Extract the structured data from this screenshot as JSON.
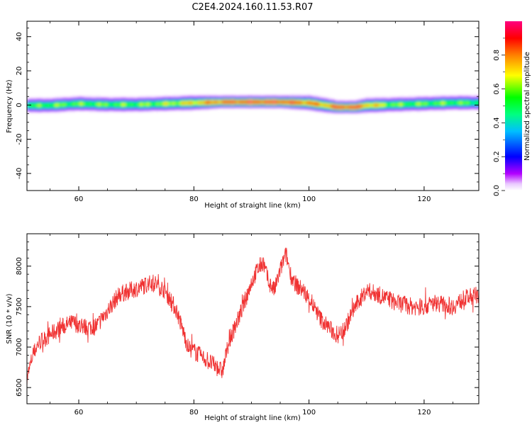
{
  "title": "C2E4.2024.160.11.53.R07",
  "chart_data": [
    {
      "type": "heatmap",
      "xlabel": "Height of straight line (km)",
      "ylabel": "Frequency (Hz)",
      "xlim": [
        51,
        129.5
      ],
      "ylim": [
        -50,
        49
      ],
      "xticks": [
        60,
        80,
        100,
        120
      ],
      "yticks": [
        40,
        20,
        0,
        -20,
        -40
      ],
      "colorbar": {
        "label": "Normalized spectral amplitude",
        "range": [
          0,
          1
        ],
        "ticks": [
          "0.0",
          "0.2",
          "0.4",
          "0.6",
          "0.8"
        ],
        "colors": [
          "#ffffff",
          "#b300ff",
          "#0000ff",
          "#00bfff",
          "#00ff80",
          "#00ff00",
          "#ffff00",
          "#ff8000",
          "#ff0000",
          "#ff0080"
        ]
      },
      "ridge": {
        "x": [
          51,
          55,
          60,
          65,
          70,
          75,
          80,
          85,
          90,
          95,
          100,
          103,
          105,
          108,
          110,
          115,
          120,
          125,
          129.5
        ],
        "center_hz": [
          0,
          0,
          1,
          0.5,
          0.5,
          1,
          1.5,
          2,
          2,
          2,
          1.5,
          0,
          -1,
          -1,
          0,
          0.5,
          1,
          1.5,
          1.5
        ],
        "peak_amplitude": [
          0.55,
          0.6,
          0.6,
          0.6,
          0.6,
          0.65,
          0.75,
          0.9,
          0.95,
          0.95,
          0.85,
          0.8,
          0.95,
          0.95,
          0.8,
          0.6,
          0.6,
          0.6,
          0.55
        ],
        "halfwidth_hz": [
          3,
          3,
          3,
          3,
          3,
          3,
          3,
          2.5,
          2.5,
          2.5,
          3,
          3,
          2.5,
          2.5,
          3,
          3,
          3,
          3,
          3
        ]
      }
    },
    {
      "type": "line",
      "xlabel": "Height of straight line (km)",
      "ylabel": "SNR (10 * v/v)",
      "xlim": [
        51,
        129.5
      ],
      "ylim": [
        6300,
        8400
      ],
      "xticks": [
        60,
        80,
        100,
        120
      ],
      "yticks": [
        6500,
        7000,
        7500,
        8000
      ],
      "series": [
        {
          "color": "#f03232",
          "x": [
            51,
            52,
            53,
            55,
            57,
            59,
            61,
            63,
            65,
            67,
            69,
            71,
            73,
            75,
            77,
            79,
            80,
            82,
            84,
            85,
            86,
            88,
            90,
            91,
            92,
            93,
            94,
            95,
            96,
            97,
            98,
            99,
            100,
            102,
            104,
            105,
            106,
            108,
            110,
            112,
            115,
            118,
            120,
            122,
            125,
            127,
            129.5
          ],
          "y": [
            6600,
            6900,
            7050,
            7150,
            7250,
            7300,
            7250,
            7250,
            7450,
            7650,
            7700,
            7750,
            7800,
            7700,
            7450,
            7000,
            6950,
            6850,
            6750,
            6700,
            7050,
            7400,
            7800,
            7950,
            8050,
            7800,
            7700,
            7950,
            8150,
            7850,
            7750,
            7700,
            7600,
            7350,
            7200,
            7150,
            7200,
            7500,
            7700,
            7650,
            7550,
            7500,
            7500,
            7550,
            7500,
            7600,
            7650
          ],
          "noise_amplitude": 110
        }
      ]
    }
  ]
}
